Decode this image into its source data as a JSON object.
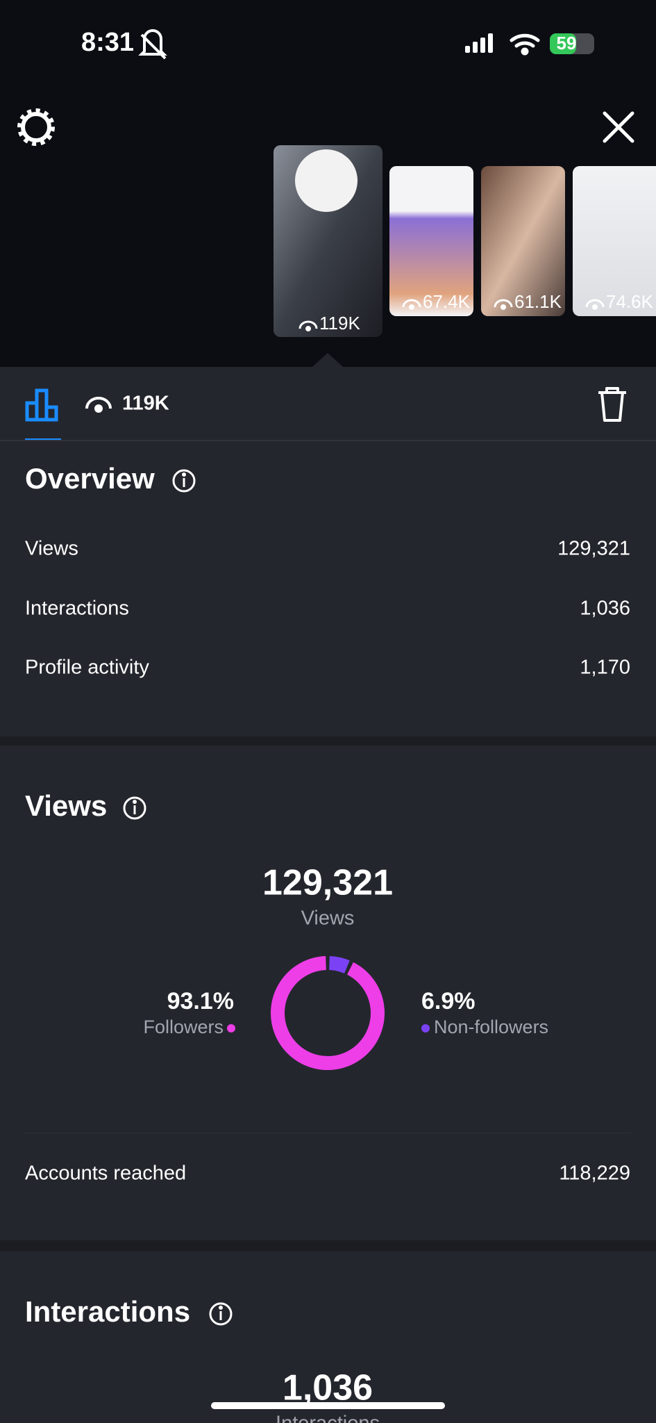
{
  "status_bar": {
    "time": "8:31",
    "battery": "59"
  },
  "thumbnails": [
    {
      "views": "119K"
    },
    {
      "views": "67.4K"
    },
    {
      "views": "61.1K"
    },
    {
      "views": "74.6K"
    }
  ],
  "tab": {
    "views": "119K"
  },
  "overview": {
    "title": "Overview",
    "rows": [
      {
        "label": "Views",
        "value": "129,321"
      },
      {
        "label": "Interactions",
        "value": "1,036"
      },
      {
        "label": "Profile activity",
        "value": "1,170"
      }
    ]
  },
  "views": {
    "title": "Views",
    "total": "129,321",
    "total_label": "Views",
    "accounts_reached": {
      "label": "Accounts reached",
      "value": "118,229"
    }
  },
  "chart_data": {
    "type": "donut",
    "categories": [
      "Followers",
      "Non-followers"
    ],
    "values": [
      93.1,
      6.9
    ],
    "value_labels": [
      "93.1%",
      "6.9%"
    ],
    "colors": [
      "#ee3ee8",
      "#7b42f5"
    ]
  },
  "interactions": {
    "title": "Interactions",
    "total": "1,036",
    "total_label": "Interactions"
  }
}
